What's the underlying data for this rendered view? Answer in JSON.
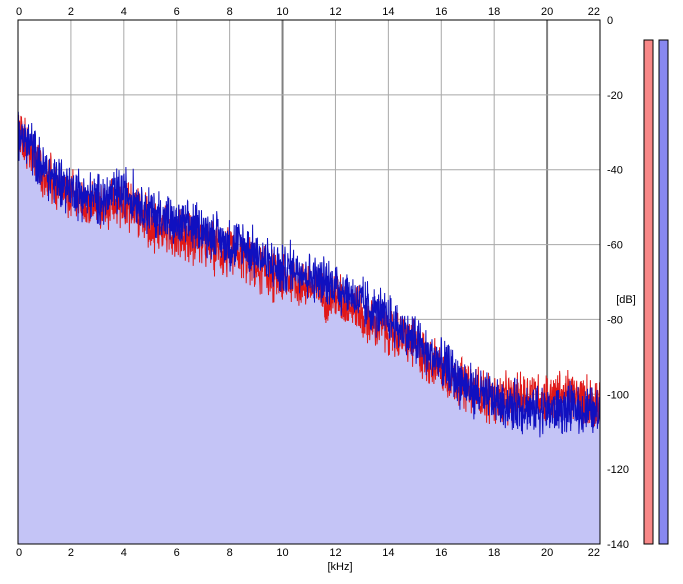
{
  "chart_data": {
    "type": "area",
    "xlabel": "[kHz]",
    "ylabel": "[dB]",
    "xlim": [
      0,
      22
    ],
    "ylim": [
      -140,
      0
    ],
    "x_ticks": [
      0,
      2,
      4,
      6,
      8,
      10,
      12,
      14,
      16,
      18,
      20,
      22
    ],
    "x_tick_labels": [
      "0",
      "2",
      "4",
      "6",
      "8",
      "10",
      "12",
      "14",
      "16",
      "18",
      "20",
      "22"
    ],
    "y_ticks": [
      0,
      -20,
      -40,
      -60,
      -80,
      -100,
      -120,
      -140
    ],
    "y_tick_labels": [
      "0",
      "-20",
      "-40",
      "-60",
      "-80",
      "-100",
      "-120",
      "-140"
    ],
    "grid": true,
    "colors": {
      "fill": "#c4c4f6",
      "left_channel": "#e01818",
      "right_channel": "#1010c0",
      "grid": "#a8a8a8",
      "major_grid": "#808080",
      "meter_left": "#f88888",
      "meter_right": "#8888f0"
    },
    "envelope": {
      "x": [
        0,
        0.2,
        0.5,
        1,
        1.5,
        2,
        2.5,
        3,
        3.5,
        4,
        4.5,
        5,
        5.5,
        6,
        6.5,
        7,
        7.5,
        8,
        8.5,
        9,
        9.5,
        10,
        10.5,
        11,
        11.5,
        12,
        12.5,
        13,
        13.5,
        14,
        14.5,
        15,
        15.5,
        16,
        16.5,
        17,
        17.5,
        18,
        18.5,
        19,
        19.5,
        20,
        20.5,
        21,
        21.5,
        22
      ],
      "y": [
        -30,
        -28,
        -34,
        -40,
        -43,
        -45,
        -47,
        -48,
        -47,
        -47,
        -49,
        -52,
        -54,
        -55,
        -56,
        -57,
        -59,
        -61,
        -61,
        -64,
        -66,
        -68,
        -67,
        -69,
        -71,
        -72,
        -74,
        -77,
        -79,
        -81,
        -84,
        -86,
        -89,
        -92,
        -95,
        -97,
        -99,
        -101,
        -101,
        -102,
        -102,
        -102,
        -102,
        -103,
        -103,
        -103
      ]
    },
    "series": [
      {
        "name": "",
        "x": [
          0,
          0.5,
          1,
          1.5,
          2,
          2.5,
          3,
          3.5,
          4,
          4.5,
          5,
          5.5,
          6,
          6.5,
          7,
          7.5,
          8,
          8.5,
          9,
          9.5,
          10,
          10.5,
          11,
          11.5,
          12,
          12.5,
          13,
          13.5,
          14,
          14.5,
          15,
          15.5,
          16,
          16.5,
          17,
          17.5,
          18,
          18.5,
          19,
          19.5,
          20,
          20.5,
          21,
          21.5,
          22
        ],
        "values": [
          -31,
          -35,
          -41,
          -45,
          -47,
          -49,
          -50,
          -49,
          -49,
          -51,
          -54,
          -56,
          -57,
          -58,
          -59,
          -61,
          -63,
          -63,
          -66,
          -68,
          -70,
          -69,
          -71,
          -73,
          -74,
          -76,
          -79,
          -81,
          -83,
          -85,
          -87,
          -90,
          -93,
          -96,
          -98,
          -100,
          -101,
          -101,
          -101,
          -100,
          -101,
          -100,
          -101,
          -101,
          -102
        ]
      },
      {
        "name": "",
        "x": [
          0,
          0.5,
          1,
          1.5,
          2,
          2.5,
          3,
          3.5,
          4,
          4.5,
          5,
          5.5,
          6,
          6.5,
          7,
          7.5,
          8,
          8.5,
          9,
          9.5,
          10,
          10.5,
          11,
          11.5,
          12,
          12.5,
          13,
          13.5,
          14,
          14.5,
          15,
          15.5,
          16,
          16.5,
          17,
          17.5,
          18,
          18.5,
          19,
          19.5,
          20,
          20.5,
          21,
          21.5,
          22
        ],
        "values": [
          -30,
          -34,
          -40,
          -43,
          -45,
          -47,
          -48,
          -47,
          -46,
          -48,
          -51,
          -53,
          -55,
          -55,
          -56,
          -58,
          -60,
          -60,
          -63,
          -65,
          -67,
          -66,
          -68,
          -70,
          -71,
          -73,
          -76,
          -78,
          -80,
          -83,
          -86,
          -89,
          -92,
          -95,
          -98,
          -100,
          -102,
          -103,
          -103,
          -104,
          -104,
          -104,
          -104,
          -105,
          -105
        ]
      }
    ]
  }
}
